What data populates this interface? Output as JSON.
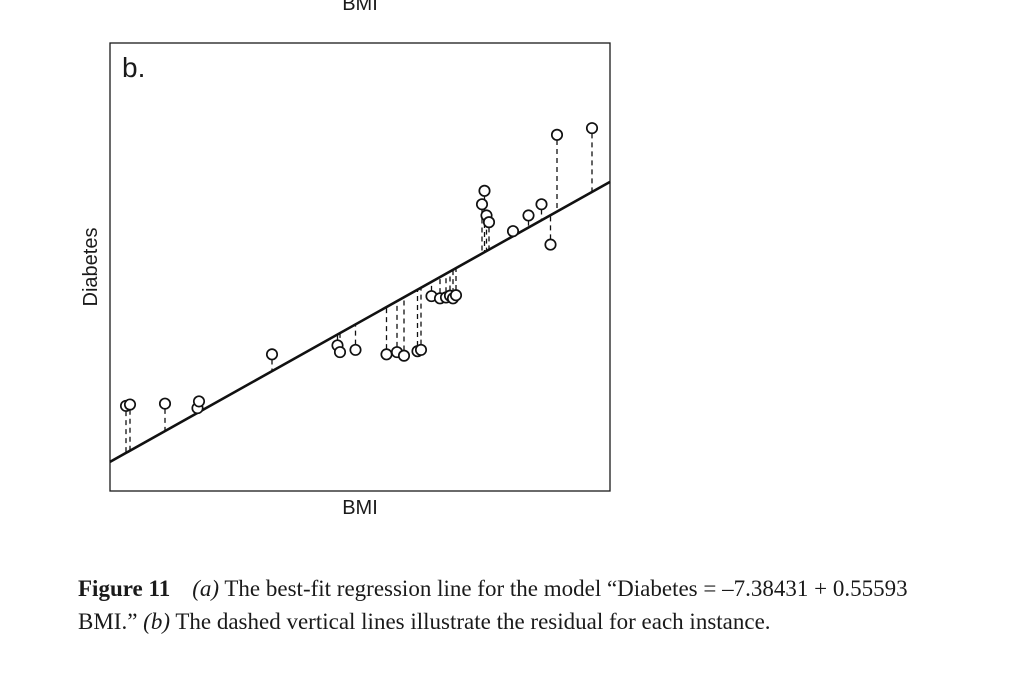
{
  "chart_data": {
    "type": "scatter",
    "panel_label": "b.",
    "top_label_partial": "BMI",
    "xlabel": "BMI",
    "ylabel": "Diabetes",
    "xlim": [
      0,
      100
    ],
    "ylim": [
      0,
      100
    ],
    "grid": false,
    "regression_line": {
      "start": [
        0,
        6.5
      ],
      "end": [
        100,
        69
      ]
    },
    "points": [
      {
        "x": 3.2,
        "y": 19
      },
      {
        "x": 4.0,
        "y": 19.3
      },
      {
        "x": 11.0,
        "y": 19.5
      },
      {
        "x": 17.5,
        "y": 18.5
      },
      {
        "x": 17.8,
        "y": 20
      },
      {
        "x": 32.4,
        "y": 30.5
      },
      {
        "x": 45.5,
        "y": 32.5
      },
      {
        "x": 46.0,
        "y": 31
      },
      {
        "x": 49.1,
        "y": 31.5
      },
      {
        "x": 55.3,
        "y": 30.5
      },
      {
        "x": 57.4,
        "y": 31
      },
      {
        "x": 58.8,
        "y": 30.2
      },
      {
        "x": 61.5,
        "y": 31.2
      },
      {
        "x": 62.2,
        "y": 31.5
      },
      {
        "x": 64.3,
        "y": 43.5
      },
      {
        "x": 66.0,
        "y": 43
      },
      {
        "x": 67.2,
        "y": 43.2
      },
      {
        "x": 68.0,
        "y": 43.6
      },
      {
        "x": 68.6,
        "y": 43
      },
      {
        "x": 69.2,
        "y": 43.7
      },
      {
        "x": 74.4,
        "y": 64
      },
      {
        "x": 74.9,
        "y": 67
      },
      {
        "x": 75.3,
        "y": 61.5
      },
      {
        "x": 75.8,
        "y": 60
      },
      {
        "x": 80.6,
        "y": 58
      },
      {
        "x": 83.7,
        "y": 61.5
      },
      {
        "x": 86.3,
        "y": 64
      },
      {
        "x": 88.1,
        "y": 55
      },
      {
        "x": 89.4,
        "y": 79.5
      },
      {
        "x": 96.4,
        "y": 81
      }
    ]
  },
  "caption": {
    "label": "Figure 11",
    "a": "(a)",
    "text_a": " The best-fit regression line for the model “Diabetes = –7.38431 + 0.55593 BMI.” ",
    "b": "(b)",
    "text_b": " The dashed vertical lines illustrate the residual for each instance."
  }
}
